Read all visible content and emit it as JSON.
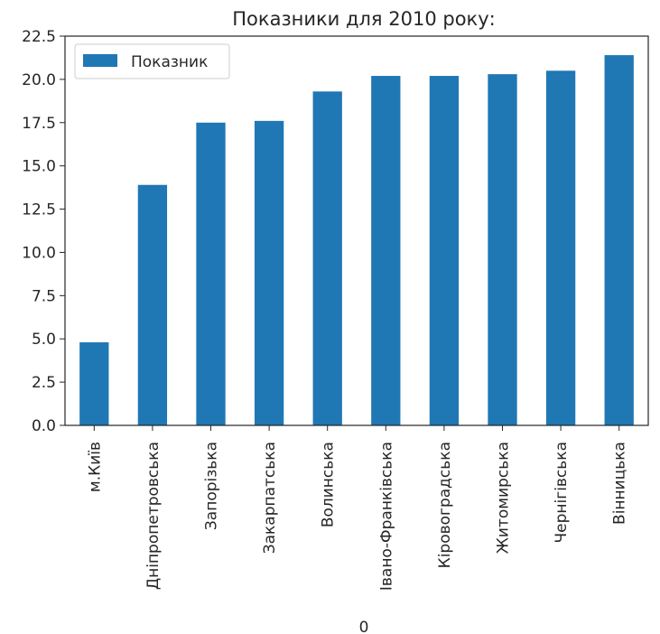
{
  "chart_data": {
    "type": "bar",
    "title": "Показники для 2010 року:",
    "xlabel": "0",
    "ylabel": "",
    "categories": [
      "м.Київ",
      "Дніпропетровська",
      "Запорізька",
      "Закарпатська",
      "Волинська",
      "Івано-Франківська",
      "Кіровоградська",
      "Житомирська",
      "Чернігівська",
      "Вінницька"
    ],
    "series": [
      {
        "name": "Показник",
        "values": [
          4.8,
          13.9,
          17.5,
          17.6,
          19.3,
          20.2,
          20.2,
          20.3,
          20.5,
          21.4
        ],
        "color": "#1f77b4"
      }
    ],
    "ylim": [
      0,
      22.5
    ],
    "yticks": [
      "0.0",
      "2.5",
      "5.0",
      "7.5",
      "10.0",
      "12.5",
      "15.0",
      "17.5",
      "20.0",
      "22.5"
    ],
    "grid": false,
    "legend_position": "top-left"
  }
}
